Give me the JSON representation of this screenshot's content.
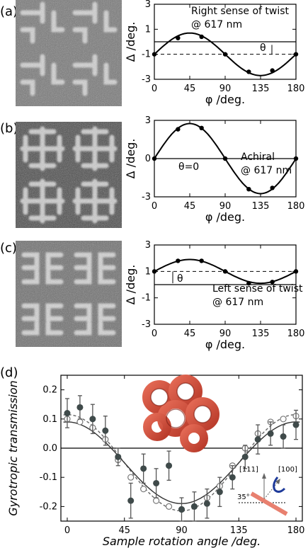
{
  "panels": [
    {
      "label": "(a)",
      "annotation_lines": [
        "Right  sense of twist",
        "@ 617 nm"
      ],
      "theta_label": "θ"
    },
    {
      "label": "(b)",
      "annotation_lines": [
        "Achiral",
        "@ 617 nm"
      ],
      "theta_label": "θ=0"
    },
    {
      "label": "(c)",
      "annotation_lines": [
        "Left sense of twist",
        "@ 617 nm"
      ],
      "theta_label": "θ"
    },
    {
      "label": "(d)"
    }
  ],
  "inset_d": {
    "dir1": "[111]",
    "dir2": "[100]",
    "angle": "35°"
  },
  "chart_data": [
    {
      "type": "line",
      "xlabel": "φ /deg.",
      "ylabel": "Δ /deg.",
      "xticks": [
        0,
        45,
        90,
        135,
        180
      ],
      "yticks": [
        -3,
        -1,
        1,
        3
      ],
      "xlim": [
        0,
        180
      ],
      "ylim": [
        -3,
        3
      ],
      "dashed_level": -1,
      "points": [
        [
          0,
          -1
        ],
        [
          30,
          0.3
        ],
        [
          60,
          0.4
        ],
        [
          90,
          -1
        ],
        [
          120,
          -2.4
        ],
        [
          150,
          -2.3
        ],
        [
          180,
          -1
        ]
      ],
      "curve_center": -1,
      "curve_amplitude": 1.7
    },
    {
      "type": "line",
      "xlabel": "φ /deg.",
      "ylabel": "Δ /deg.",
      "xticks": [
        0,
        45,
        90,
        135,
        180
      ],
      "yticks": [
        -3,
        0,
        3
      ],
      "xlim": [
        0,
        180
      ],
      "ylim": [
        -3,
        3
      ],
      "points": [
        [
          0,
          0
        ],
        [
          30,
          2.3
        ],
        [
          60,
          2.4
        ],
        [
          90,
          0
        ],
        [
          120,
          -2.4
        ],
        [
          150,
          -2.3
        ],
        [
          180,
          0
        ]
      ],
      "curve_center": 0,
      "curve_amplitude": 2.75
    },
    {
      "type": "line",
      "xlabel": "φ /deg.",
      "ylabel": "Δ /deg.",
      "xticks": [
        0,
        45,
        90,
        135,
        180
      ],
      "yticks": [
        -3,
        -1,
        1,
        3
      ],
      "xlim": [
        0,
        180
      ],
      "ylim": [
        -3,
        3
      ],
      "dashed_level": 1,
      "points": [
        [
          0,
          1
        ],
        [
          30,
          1.8
        ],
        [
          60,
          1.8
        ],
        [
          90,
          1
        ],
        [
          120,
          0.1
        ],
        [
          150,
          0.2
        ],
        [
          180,
          1
        ]
      ],
      "curve_center": 1,
      "curve_amplitude": 0.9
    },
    {
      "type": "scatter",
      "xlabel": "Sample rotation angle /deg.",
      "ylabel": "Gyrotropic transmission",
      "xticks": [
        0,
        45,
        90,
        135,
        180
      ],
      "yticks": [
        -0.2,
        -0.1,
        0.0,
        0.1,
        0.2
      ],
      "ytick_labels": [
        "-0.2",
        "-0.1",
        "0.0",
        "0.1",
        "0.2"
      ],
      "xlim": [
        -5,
        185
      ],
      "ylim": [
        -0.25,
        0.25
      ],
      "series": [
        {
          "style": "filled-markers-with-errorbars",
          "points": [
            [
              0,
              0.12,
              0.05
            ],
            [
              10,
              0.14,
              0.04
            ],
            [
              20,
              0.1,
              0.05
            ],
            [
              30,
              0.06,
              0.05
            ],
            [
              40,
              -0.03,
              0.03
            ],
            [
              50,
              -0.18,
              0.06
            ],
            [
              60,
              -0.07,
              0.05
            ],
            [
              70,
              -0.12,
              0.05
            ],
            [
              80,
              -0.06,
              0.05
            ],
            [
              90,
              -0.21,
              0.04
            ],
            [
              100,
              -0.2,
              0.05
            ],
            [
              110,
              -0.19,
              0.05
            ],
            [
              120,
              -0.15,
              0.05
            ],
            [
              130,
              -0.1,
              0.04
            ],
            [
              140,
              -0.03,
              0.04
            ],
            [
              150,
              0.03,
              0.05
            ],
            [
              160,
              0.05,
              0.04
            ],
            [
              170,
              0.04,
              0.04
            ],
            [
              180,
              0.08,
              0.05
            ]
          ]
        },
        {
          "style": "open-markers-dashed",
          "points": [
            [
              0,
              0.1
            ],
            [
              10,
              0.09
            ],
            [
              20,
              0.07
            ],
            [
              30,
              0.03
            ],
            [
              40,
              -0.04
            ],
            [
              50,
              -0.1
            ],
            [
              60,
              -0.14
            ],
            [
              70,
              -0.18
            ],
            [
              80,
              -0.2
            ],
            [
              90,
              -0.21
            ],
            [
              100,
              -0.2
            ],
            [
              110,
              -0.17
            ],
            [
              120,
              -0.13
            ],
            [
              130,
              -0.06
            ],
            [
              140,
              0.0
            ],
            [
              150,
              0.05
            ],
            [
              160,
              0.09
            ],
            [
              170,
              0.1
            ],
            [
              180,
              0.11
            ]
          ]
        }
      ],
      "fit_solid": {
        "center": -0.05,
        "amplitude": 0.14
      },
      "fit_dashed": {
        "center": -0.05,
        "amplitude": 0.165
      }
    }
  ]
}
